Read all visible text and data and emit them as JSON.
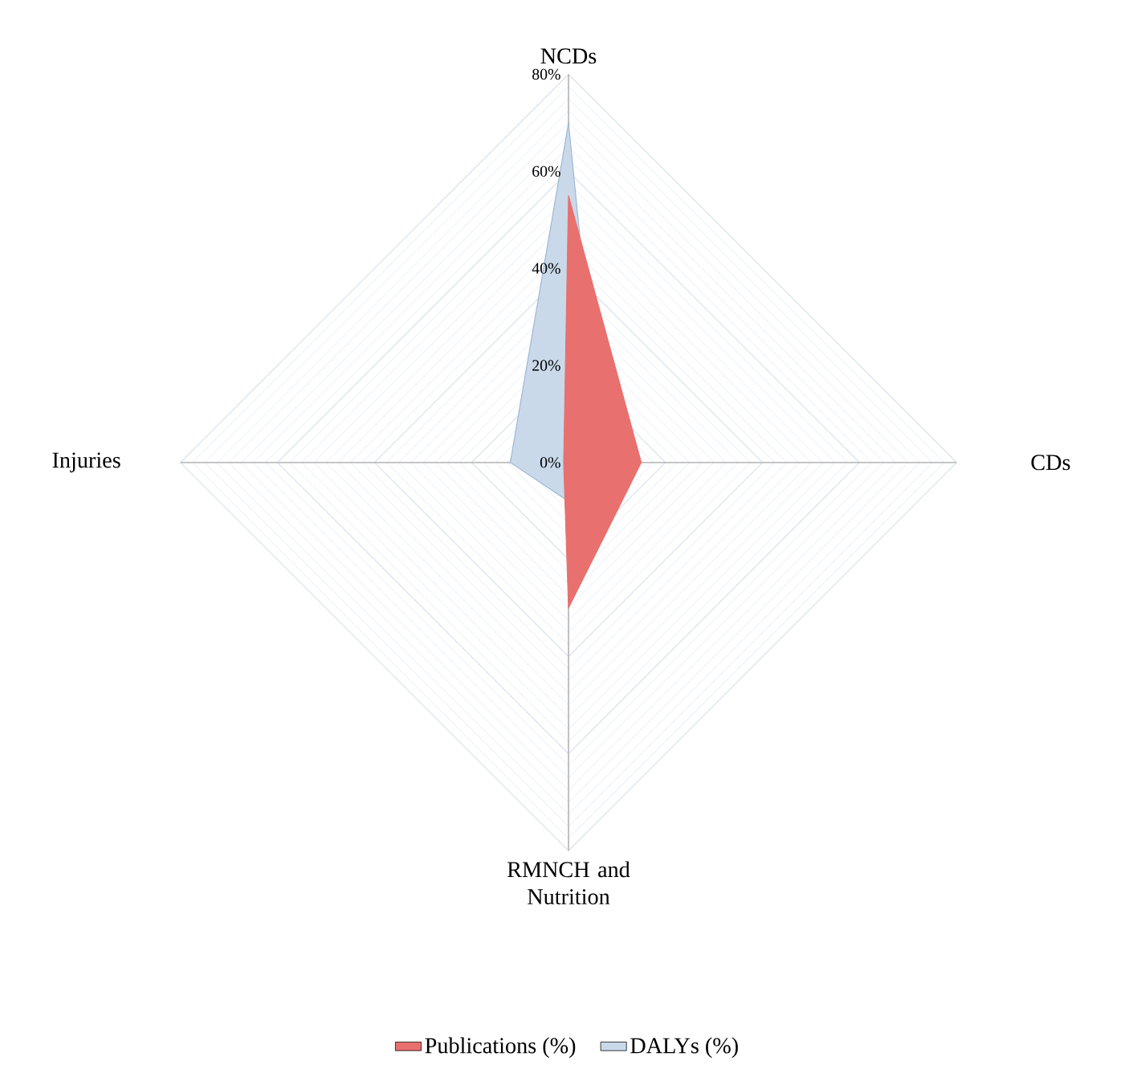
{
  "chart_data": {
    "type": "radar",
    "categories": [
      "NCDs",
      "CDs",
      "RMNCH and Nutrition",
      "Injuries"
    ],
    "series": [
      {
        "name": "Publications (%)",
        "color": "#e8706e",
        "values": [
          55,
          15,
          30,
          1
        ]
      },
      {
        "name": "DALYs (%)",
        "color": "#c9d9ea",
        "values": [
          70,
          7,
          8,
          12
        ]
      }
    ],
    "ylim": [
      0,
      80
    ],
    "yticks": [
      {
        "value": 0,
        "label": "0%"
      },
      {
        "value": 20,
        "label": "20%"
      },
      {
        "value": 40,
        "label": "40%"
      },
      {
        "value": 60,
        "label": "60%"
      },
      {
        "value": 80,
        "label": "80%"
      }
    ],
    "grid": true,
    "legend": "bottom",
    "marker": "none"
  }
}
